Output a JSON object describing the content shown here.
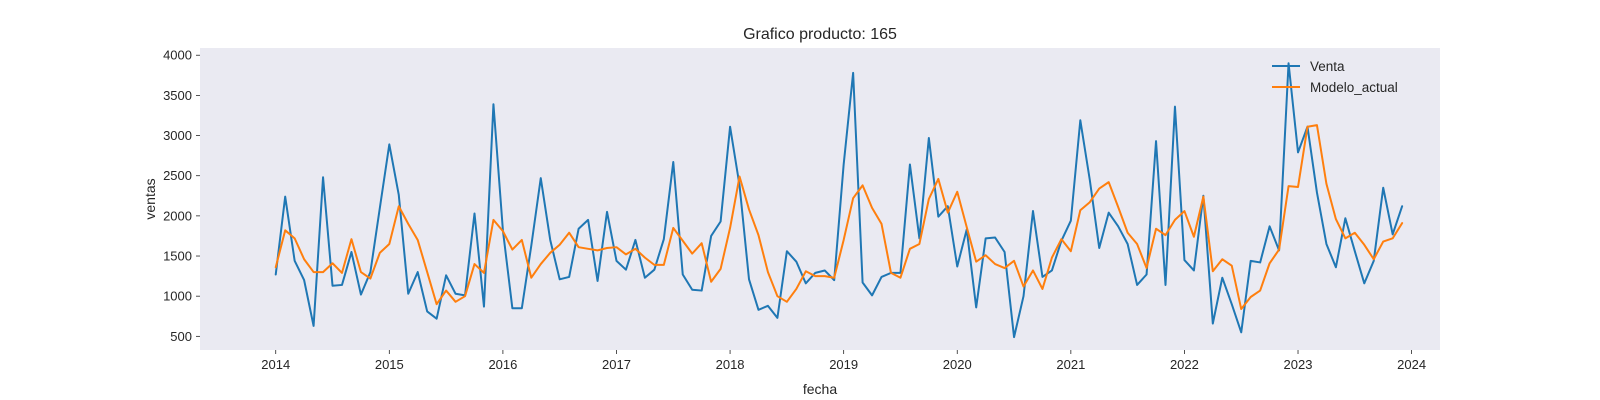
{
  "chart_data": {
    "type": "line",
    "title": "Grafico producto: 165",
    "xlabel": "fecha",
    "ylabel": "ventas",
    "x_start": "2014-01",
    "x_frequency": "monthly",
    "xlim": [
      "2013-05",
      "2024-04"
    ],
    "ylim": [
      330,
      4090
    ],
    "xticks": [
      {
        "label": "2014",
        "date": "2014-01"
      },
      {
        "label": "2015",
        "date": "2015-01"
      },
      {
        "label": "2016",
        "date": "2016-01"
      },
      {
        "label": "2017",
        "date": "2017-01"
      },
      {
        "label": "2018",
        "date": "2018-01"
      },
      {
        "label": "2019",
        "date": "2019-01"
      },
      {
        "label": "2020",
        "date": "2020-01"
      },
      {
        "label": "2021",
        "date": "2021-01"
      },
      {
        "label": "2022",
        "date": "2022-01"
      },
      {
        "label": "2023",
        "date": "2023-01"
      },
      {
        "label": "2024",
        "date": "2024-01"
      }
    ],
    "yticks": [
      500,
      1000,
      1500,
      2000,
      2500,
      3000,
      3500,
      4000
    ],
    "grid": false,
    "background": "#eaeaf2",
    "legend_position": "top-right",
    "series": [
      {
        "name": "Venta",
        "color": "#1f77b4",
        "values": [
          1270,
          2240,
          1440,
          1200,
          630,
          2480,
          1130,
          1140,
          1550,
          1020,
          1300,
          2100,
          2890,
          2260,
          1030,
          1300,
          810,
          720,
          1260,
          1030,
          1010,
          2030,
          870,
          3390,
          1820,
          850,
          850,
          1630,
          2470,
          1700,
          1210,
          1240,
          1840,
          1950,
          1190,
          2050,
          1440,
          1330,
          1700,
          1230,
          1330,
          1710,
          2670,
          1270,
          1080,
          1070,
          1750,
          1930,
          3110,
          2380,
          1210,
          830,
          880,
          730,
          1560,
          1430,
          1160,
          1290,
          1320,
          1200,
          2640,
          3780,
          1170,
          1010,
          1240,
          1290,
          1290,
          2640,
          1720,
          2970,
          1990,
          2120,
          1370,
          1830,
          860,
          1720,
          1730,
          1550,
          490,
          1000,
          2060,
          1240,
          1320,
          1690,
          1940,
          3190,
          2450,
          1600,
          2040,
          1870,
          1650,
          1140,
          1270,
          2930,
          1140,
          3360,
          1450,
          1320,
          2250,
          660,
          1230,
          900,
          550,
          1440,
          1420,
          1870,
          1570,
          3900,
          2790,
          3110,
          2290,
          1650,
          1360,
          1970,
          1560,
          1160,
          1440,
          2350,
          1770,
          2120
        ]
      },
      {
        "name": "Modelo_actual",
        "color": "#ff7f0e",
        "values": [
          1360,
          1820,
          1720,
          1460,
          1300,
          1300,
          1410,
          1290,
          1710,
          1300,
          1220,
          1540,
          1650,
          2120,
          1900,
          1700,
          1300,
          900,
          1070,
          930,
          1000,
          1400,
          1290,
          1950,
          1810,
          1580,
          1700,
          1230,
          1400,
          1540,
          1640,
          1790,
          1610,
          1590,
          1570,
          1600,
          1610,
          1520,
          1590,
          1480,
          1390,
          1390,
          1850,
          1690,
          1530,
          1660,
          1180,
          1340,
          1850,
          2490,
          2080,
          1760,
          1300,
          1000,
          930,
          1090,
          1310,
          1250,
          1250,
          1230,
          1700,
          2220,
          2380,
          2100,
          1900,
          1290,
          1230,
          1590,
          1650,
          2210,
          2460,
          2040,
          2300,
          1860,
          1430,
          1510,
          1400,
          1350,
          1440,
          1120,
          1320,
          1090,
          1480,
          1710,
          1560,
          2070,
          2170,
          2340,
          2420,
          2110,
          1790,
          1650,
          1350,
          1840,
          1760,
          1950,
          2060,
          1740,
          2240,
          1310,
          1460,
          1380,
          840,
          990,
          1070,
          1410,
          1580,
          2370,
          2360,
          3110,
          3130,
          2400,
          1960,
          1720,
          1790,
          1640,
          1460,
          1680,
          1720,
          1910
        ]
      }
    ]
  }
}
